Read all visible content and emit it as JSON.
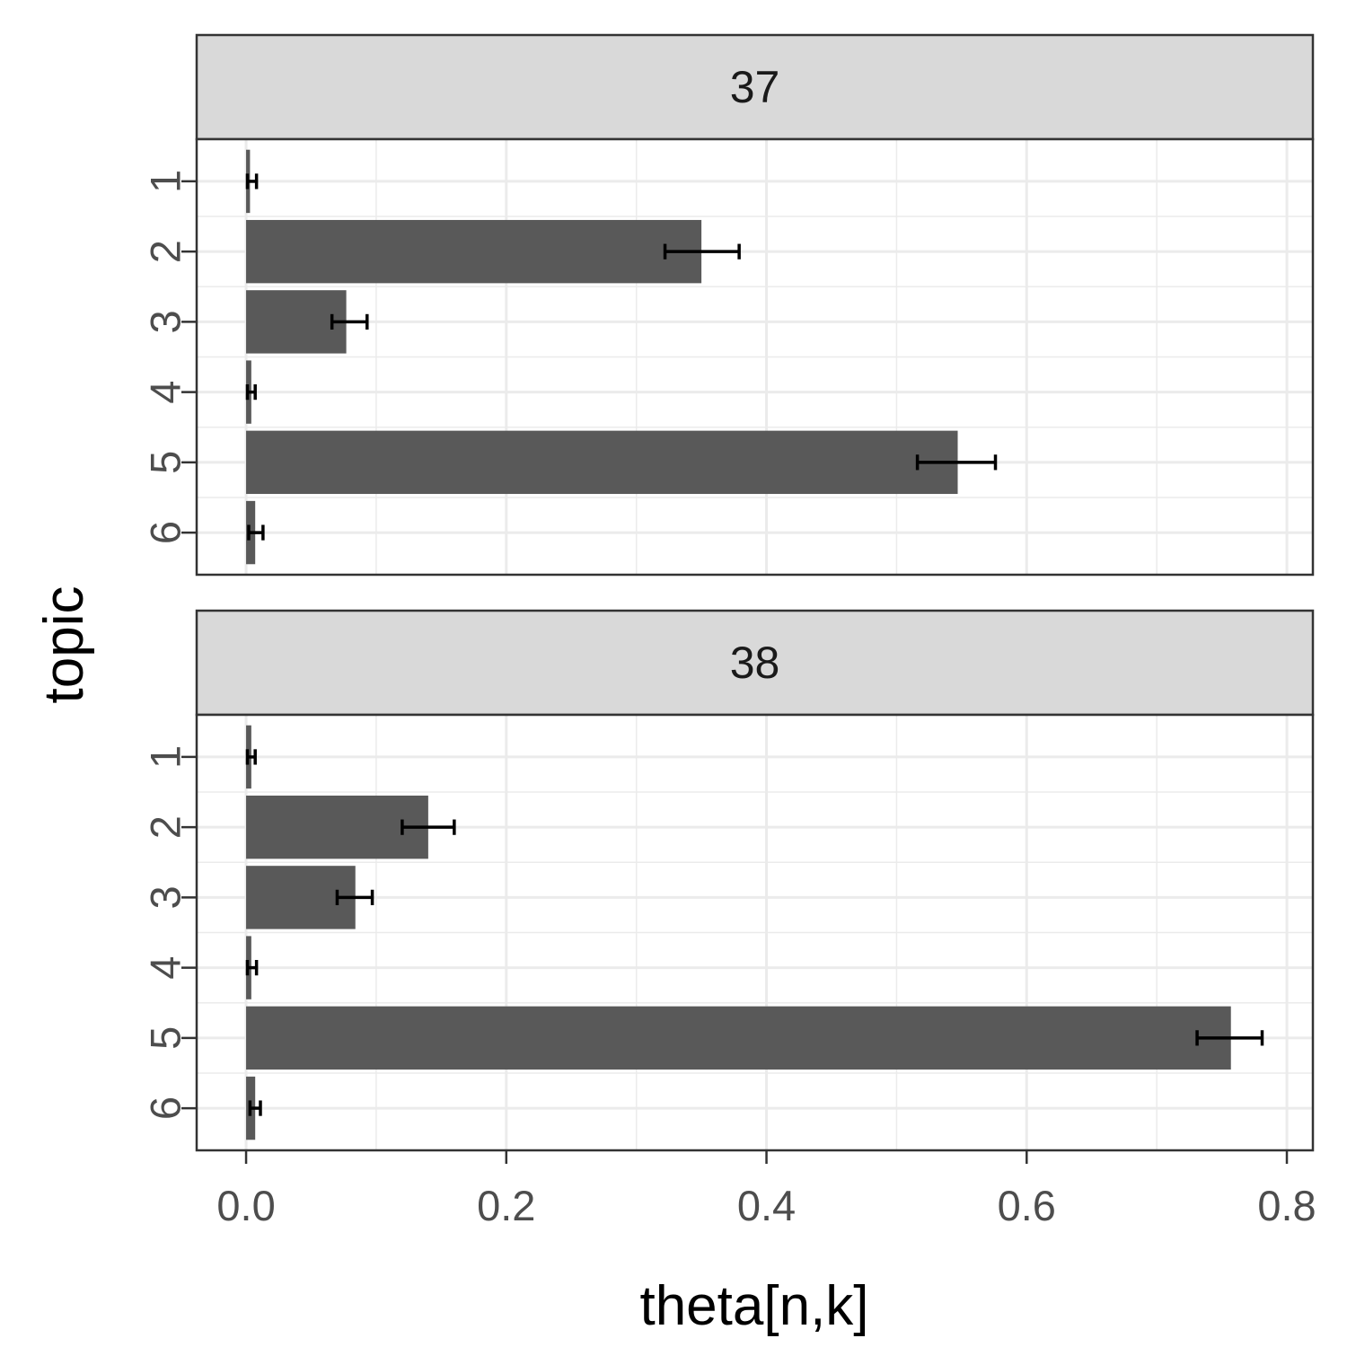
{
  "chart_data": {
    "type": "bar",
    "orientation": "horizontal",
    "xlabel": "theta[n,k]",
    "ylabel": "topic",
    "xlim": [
      -0.038,
      0.82
    ],
    "xticks": [
      "0.0",
      "0.2",
      "0.4",
      "0.6",
      "0.8"
    ],
    "xtick_values": [
      0,
      0.2,
      0.4,
      0.6,
      0.8
    ],
    "categories": [
      "1",
      "2",
      "3",
      "4",
      "5",
      "6"
    ],
    "grid": true,
    "colors": {
      "bar": "#595959",
      "errorbar": "#000000",
      "strip": "#d9d9d9",
      "grid": "#ebebeb",
      "border": "#333333"
    },
    "panels": [
      {
        "label": "37",
        "values": [
          0.003,
          0.35,
          0.077,
          0.004,
          0.547,
          0.007
        ],
        "error_low": [
          0.001,
          0.322,
          0.066,
          0.001,
          0.516,
          0.002
        ],
        "error_high": [
          0.008,
          0.379,
          0.093,
          0.007,
          0.576,
          0.013
        ]
      },
      {
        "label": "38",
        "values": [
          0.004,
          0.14,
          0.084,
          0.004,
          0.757,
          0.007
        ],
        "error_low": [
          0.001,
          0.12,
          0.07,
          0.001,
          0.731,
          0.003
        ],
        "error_high": [
          0.007,
          0.16,
          0.097,
          0.008,
          0.781,
          0.011
        ]
      }
    ]
  }
}
